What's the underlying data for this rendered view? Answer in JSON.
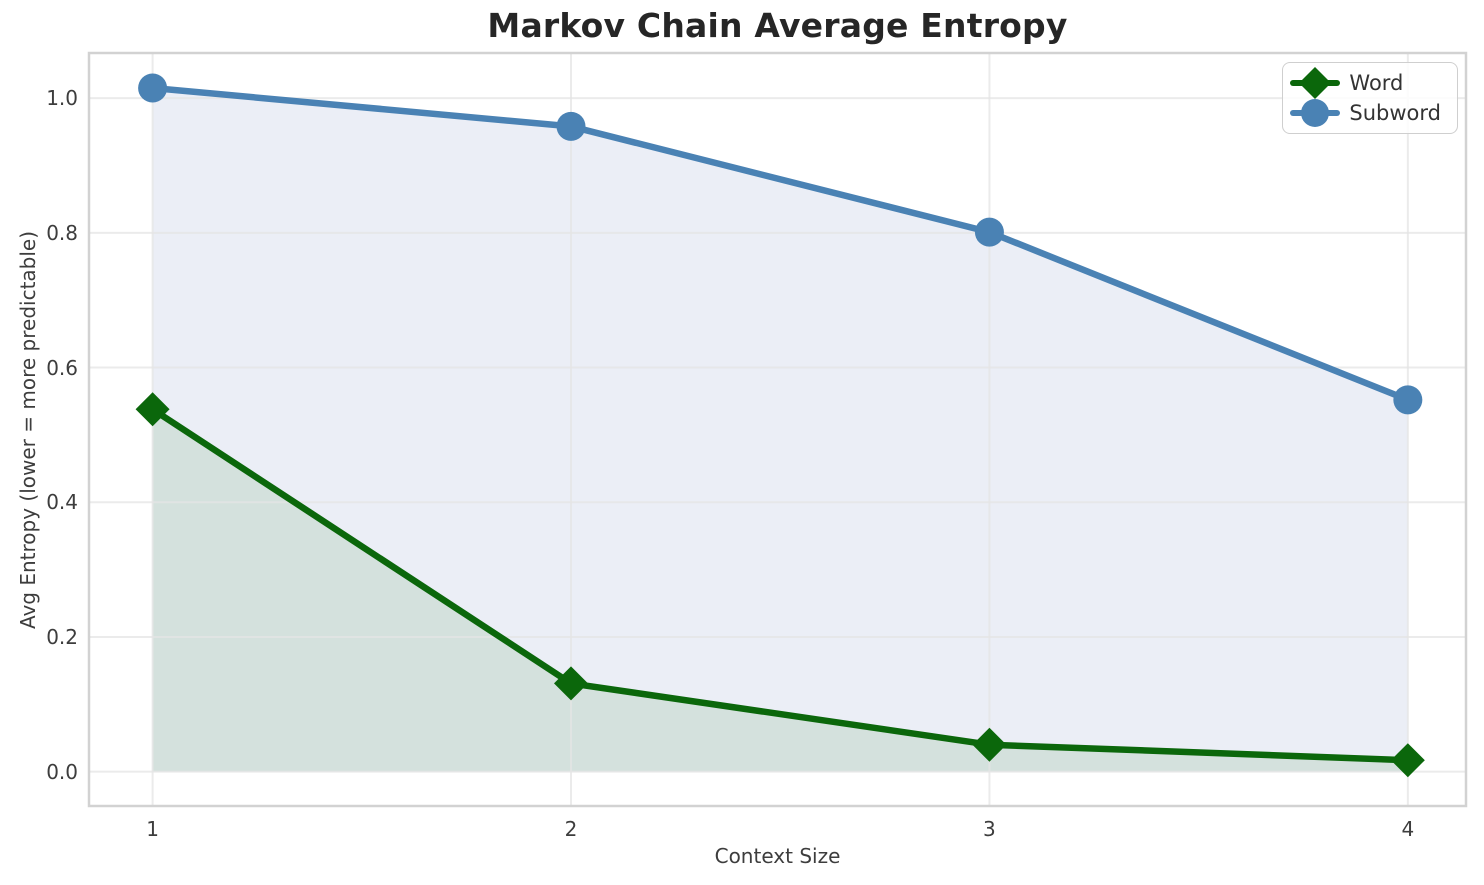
{
  "chart_data": {
    "type": "line",
    "title": "Markov Chain Average Entropy",
    "xlabel": "Context Size",
    "ylabel": "Avg Entropy (lower = more predictable)",
    "x": [
      1,
      2,
      3,
      4
    ],
    "xtick_labels": [
      "1",
      "2",
      "3",
      "4"
    ],
    "ytick_values": [
      0.0,
      0.2,
      0.4,
      0.6,
      0.8,
      1.0
    ],
    "ytick_labels": [
      "0.0",
      "0.2",
      "0.4",
      "0.6",
      "0.8",
      "1.0"
    ],
    "xlim": [
      0.848,
      4.139
    ],
    "ylim": [
      -0.051,
      1.067
    ],
    "grid": true,
    "legend_position": "upper right",
    "series": [
      {
        "name": "Word",
        "marker": "diamond",
        "color": "#0b670b",
        "area_color": "#d4e1dd",
        "values": [
          0.538,
          0.131,
          0.04,
          0.017
        ]
      },
      {
        "name": "Subword",
        "marker": "circle",
        "color": "#4a82b4",
        "area_color": "#ebeef6",
        "values": [
          1.015,
          0.958,
          0.801,
          0.552
        ]
      }
    ],
    "styles": {
      "grid_color": "#e5e5e5",
      "spine_color": "#d2d2d2",
      "text_color": "#3d3d3d",
      "title_color": "#262626",
      "background": "#ffffff",
      "line_width": 6.5
    }
  }
}
